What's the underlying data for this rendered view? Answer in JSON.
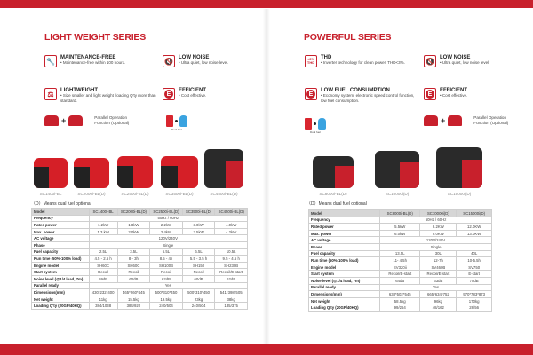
{
  "colors": {
    "accent": "#c8202c"
  },
  "left": {
    "title": "LIGHT WEIGHT SERIES",
    "features": [
      {
        "icon": "wrench-icon",
        "glyph": "🔧",
        "title": "MAINTENANCE-FREE",
        "desc": "• Maintenance-free within 100 hours."
      },
      {
        "icon": "mute-speaker-icon",
        "glyph": "🔇",
        "title": "LOW NOISE",
        "desc": "• Ultra quiet, low noise level."
      },
      {
        "icon": "scale-icon",
        "glyph": "⚖",
        "title": "LIGHTWEIGHT",
        "desc": "• Size smaller and light weight ,loading Q'ty more than standard."
      },
      {
        "icon": "efficient-e-icon",
        "glyph": "E",
        "title": "EFFICIENT",
        "desc": "• Cost effective."
      }
    ],
    "parallel": "Parallel Operation Function (Optional)",
    "dual_fuel": "Dual fuel",
    "products": [
      "SC1400i-BL",
      "SC2000i-BL(D)",
      "SC2500i-BL(D)",
      "SC3500i-BL(D)",
      "SC4500i-BL(D)"
    ],
    "note": "（D）Means dual fuel optional",
    "table": {
      "header": [
        "Model",
        "SC1400i-BL",
        "SC2000i-BL(D)",
        "SC2500i-BL(D)",
        "SC3500i-BL(D)",
        "SC4500i-BL(D)"
      ],
      "rows": [
        [
          "Frequency",
          "50Hz / 60Hz"
        ],
        [
          "Rated power",
          "1.2kW",
          "1.8kW",
          "2.2kW",
          "3.0kW",
          "4.0kW"
        ],
        [
          "Max. power",
          "1.3 kW",
          "2.0kW",
          "2.4kW",
          "3.5kW",
          "4.2kW"
        ],
        [
          "AC voltage",
          "120V/240V"
        ],
        [
          "Phase",
          "Single"
        ],
        [
          "Fuel capacity",
          "2.5L",
          "3.5L",
          "6.5L",
          "6.5L",
          "10.5L"
        ],
        [
          "Run time (50%-100% load)",
          "4.5 - 2.5 h",
          "8 - 3h",
          "8.5 - 4h",
          "5.5 - 3.5 h",
          "9.5 - 4.5 h"
        ],
        [
          "Engine model",
          "SH60C",
          "SH60C",
          "SH100B",
          "SH150",
          "SH230B"
        ],
        [
          "Start system",
          "Recoil",
          "Recoil",
          "Recoil",
          "Recoil",
          "Recoil/E-start"
        ],
        [
          "Noise level (@1/4 load, 7m)",
          "59dB",
          "60dB",
          "62dB",
          "60dB",
          "62dB"
        ],
        [
          "Parallel ready",
          "Yes"
        ],
        [
          "Dimensions(mm)",
          "430*232*400",
          "465*260*445",
          "500*310*450",
          "500*310*450",
          "541*398*505"
        ],
        [
          "Net weight",
          "11kg",
          "15.5kg",
          "19.5kg",
          "23kg",
          "38kg"
        ],
        [
          "Loading Q'ty (20GP/40HQ)",
          "384/1038",
          "384/920",
          "240/504",
          "240/504",
          "135/375"
        ]
      ]
    }
  },
  "right": {
    "title": "POWERFUL SERIES",
    "features": [
      {
        "icon": "thd-icon",
        "glyph": "<3% THD",
        "title": "THD",
        "desc": "• Inverter technology for clean power, THD<3%."
      },
      {
        "icon": "mute-speaker-icon",
        "glyph": "🔇",
        "title": "LOW NOISE",
        "desc": "• Ultra quiet, low noise level."
      },
      {
        "icon": "efficient-e-icon",
        "glyph": "E",
        "title": "LOW FUEL CONSUMPTION",
        "desc": "• Economy system, electronic speed control function, low fuel consumption."
      },
      {
        "icon": "efficient-e-icon",
        "glyph": "E",
        "title": "EFFICIENT",
        "desc": "• Cost effective."
      }
    ],
    "parallel": "Parallel Operation Function (Optional)",
    "dual_fuel": "Dual fuel",
    "products": [
      "SC8000i-BL(D)",
      "SC10000i(D)",
      "SC15000i(D)"
    ],
    "note": "（D）Means dual fuel optional",
    "table": {
      "header": [
        "Model",
        "SC8000i-BL(D)",
        "SC10000i(D)",
        "SC15000i(D)"
      ],
      "rows": [
        [
          "Frequency",
          "50Hz / 60Hz"
        ],
        [
          "Rated power",
          "5.5kW",
          "8.2KW",
          "12.0KW"
        ],
        [
          "Max. power",
          "6.0kW",
          "9.0KW",
          "13.0KW"
        ],
        [
          "AC voltage",
          "120V/240V"
        ],
        [
          "Phase",
          "Single"
        ],
        [
          "Fuel capacity",
          "13.5L",
          "30L",
          "40L"
        ],
        [
          "Run time (50%-100% load)",
          "11- 4.5h",
          "12-7h",
          "10-5.5h"
        ],
        [
          "Engine model",
          "SV320ii",
          "SV460B",
          "SV750"
        ],
        [
          "Start system",
          "Recoil/E-start",
          "Recoil/E-start",
          "E-start"
        ],
        [
          "Noise level (@1/4 load, 7m)",
          "64dB",
          "63dB",
          "75dB"
        ],
        [
          "Parallel ready",
          "Yes"
        ],
        [
          "Dimensions(mm)",
          "638*502*545",
          "665*634*752",
          "970*783*873"
        ],
        [
          "Net weight",
          "58.5kg",
          "96kg",
          "170kg"
        ],
        [
          "Loading Q'ty (20GP/40HQ)",
          "99/264",
          "48/162",
          "28/56"
        ]
      ]
    }
  }
}
